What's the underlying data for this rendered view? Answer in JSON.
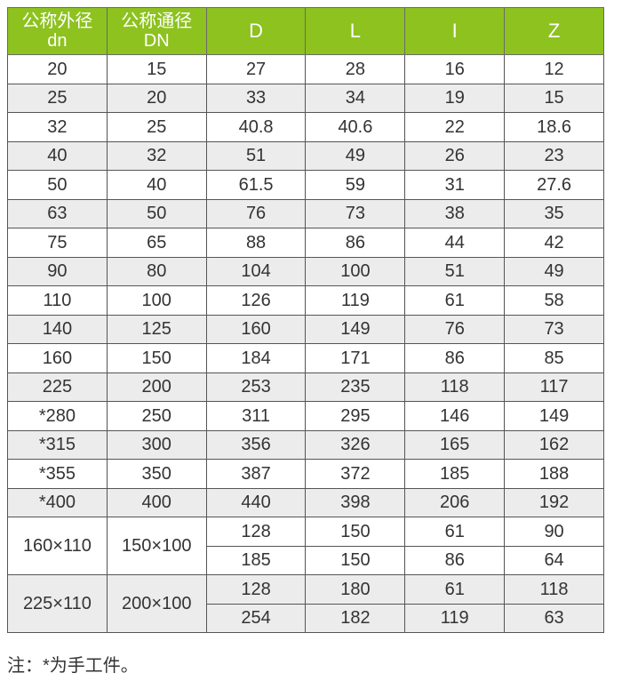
{
  "headers": [
    [
      "公称外径",
      "dn"
    ],
    [
      "公称通径",
      "DN"
    ],
    [
      "D"
    ],
    [
      "L"
    ],
    [
      "I"
    ],
    [
      "Z"
    ]
  ],
  "rows": [
    [
      "20",
      "15",
      "27",
      "28",
      "16",
      "12"
    ],
    [
      "25",
      "20",
      "33",
      "34",
      "19",
      "15"
    ],
    [
      "32",
      "25",
      "40.8",
      "40.6",
      "22",
      "18.6"
    ],
    [
      "40",
      "32",
      "51",
      "49",
      "26",
      "23"
    ],
    [
      "50",
      "40",
      "61.5",
      "59",
      "31",
      "27.6"
    ],
    [
      "63",
      "50",
      "76",
      "73",
      "38",
      "35"
    ],
    [
      "75",
      "65",
      "88",
      "86",
      "44",
      "42"
    ],
    [
      "90",
      "80",
      "104",
      "100",
      "51",
      "49"
    ],
    [
      "110",
      "100",
      "126",
      "119",
      "61",
      "58"
    ],
    [
      "140",
      "125",
      "160",
      "149",
      "76",
      "73"
    ],
    [
      "160",
      "150",
      "184",
      "171",
      "86",
      "85"
    ],
    [
      "225",
      "200",
      "253",
      "235",
      "118",
      "117"
    ],
    [
      "*280",
      "250",
      "311",
      "295",
      "146",
      "149"
    ],
    [
      "*315",
      "300",
      "356",
      "326",
      "165",
      "162"
    ],
    [
      "*355",
      "350",
      "387",
      "372",
      "185",
      "188"
    ],
    [
      "*400",
      "400",
      "440",
      "398",
      "206",
      "192"
    ]
  ],
  "reducers": [
    {
      "dn": "160×110",
      "DN": "150×100",
      "sub": [
        [
          "128",
          "150",
          "61",
          "90"
        ],
        [
          "185",
          "150",
          "86",
          "64"
        ]
      ]
    },
    {
      "dn": "225×110",
      "DN": "200×100",
      "sub": [
        [
          "128",
          "180",
          "61",
          "118"
        ],
        [
          "254",
          "182",
          "119",
          "63"
        ]
      ]
    }
  ],
  "note": "注：*为手工件。",
  "colors": {
    "header_bg": "#8dc21f",
    "stripe": "#ececec"
  }
}
